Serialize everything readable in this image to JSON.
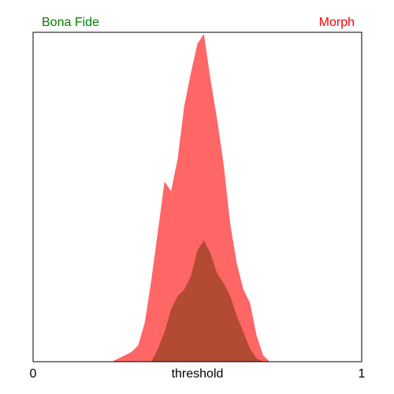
{
  "chart_data": {
    "type": "area",
    "title": "",
    "xlabel": "threshold",
    "ylabel": "",
    "xlim": [
      0,
      1
    ],
    "x_ticks": [
      "0",
      "1"
    ],
    "legend_placement": "top",
    "grid": false,
    "series": [
      {
        "name": "Bona Fide",
        "color": "#008000",
        "fill_color": "#b34a33",
        "x": [
          0.36,
          0.38,
          0.4,
          0.42,
          0.44,
          0.46,
          0.48,
          0.5,
          0.52,
          0.54,
          0.56,
          0.58,
          0.6,
          0.62,
          0.64,
          0.66,
          0.68,
          0.7
        ],
        "y": [
          0.0,
          0.04,
          0.09,
          0.16,
          0.2,
          0.22,
          0.26,
          0.34,
          0.37,
          0.33,
          0.27,
          0.24,
          0.2,
          0.14,
          0.09,
          0.04,
          0.01,
          0.0
        ]
      },
      {
        "name": "Morph",
        "color": "#ff0000",
        "fill_color": "#ff6666",
        "x": [
          0.24,
          0.26,
          0.28,
          0.3,
          0.32,
          0.34,
          0.36,
          0.38,
          0.4,
          0.42,
          0.44,
          0.46,
          0.48,
          0.5,
          0.52,
          0.54,
          0.56,
          0.58,
          0.6,
          0.62,
          0.64,
          0.66,
          0.68,
          0.7,
          0.72
        ],
        "y": [
          0.0,
          0.01,
          0.02,
          0.03,
          0.05,
          0.12,
          0.25,
          0.4,
          0.55,
          0.52,
          0.62,
          0.78,
          0.88,
          0.97,
          1.0,
          0.86,
          0.74,
          0.6,
          0.42,
          0.3,
          0.22,
          0.18,
          0.08,
          0.02,
          0.0
        ]
      }
    ]
  }
}
